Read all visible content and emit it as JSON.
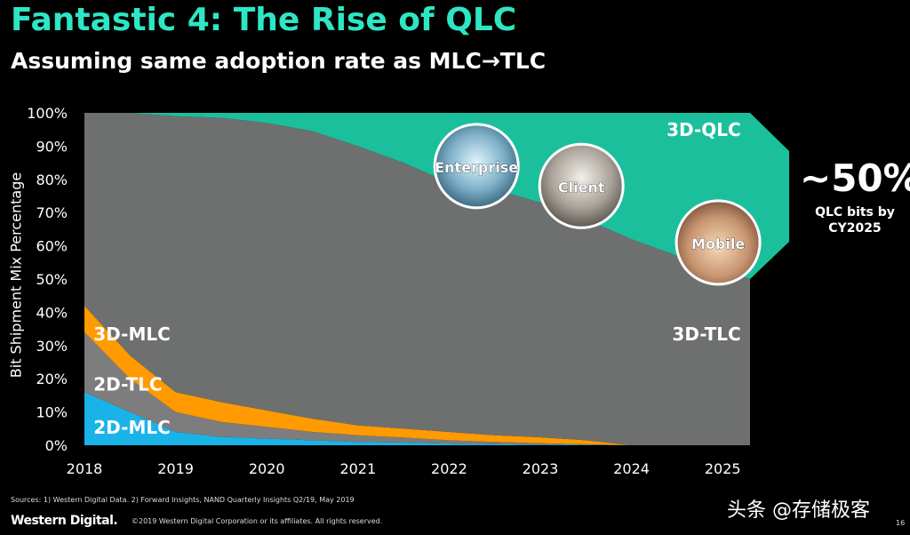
{
  "header": {
    "title": "Fantastic 4: The Rise of QLC",
    "subtitle": "Assuming same adoption rate as MLC→TLC"
  },
  "chart_data": {
    "type": "area",
    "stacked": true,
    "ylabel": "Bit Shipment Mix Percentage",
    "xlabel": "",
    "xlim": [
      2018,
      2025.3
    ],
    "ylim": [
      0,
      100
    ],
    "y_ticks": [
      "0%",
      "10%",
      "20%",
      "30%",
      "40%",
      "50%",
      "60%",
      "70%",
      "80%",
      "90%",
      "100%"
    ],
    "x_ticks": [
      "2018",
      "2019",
      "2020",
      "2021",
      "2022",
      "2023",
      "2024",
      "2025"
    ],
    "x": [
      2018,
      2018.5,
      2019,
      2019.5,
      2020,
      2020.5,
      2021,
      2021.5,
      2022,
      2022.5,
      2023,
      2023.5,
      2024,
      2024.5,
      2025,
      2025.3
    ],
    "series": [
      {
        "name": "2D-MLC",
        "color": "#1ab3e8",
        "values": [
          16,
          10,
          4,
          2.5,
          2,
          1.5,
          1,
          0.8,
          0.5,
          0.3,
          0.2,
          0.1,
          0,
          0,
          0,
          0
        ]
      },
      {
        "name": "2D-TLC",
        "color": "#7d7d7d",
        "values": [
          18,
          10,
          6,
          4.5,
          3.5,
          2.5,
          2,
          1.5,
          1,
          0.7,
          0.4,
          0.2,
          0,
          0,
          0,
          0
        ]
      },
      {
        "name": "3D-MLC",
        "color": "#ff9a00",
        "values": [
          8,
          7,
          6,
          6,
          5,
          4,
          3,
          2.7,
          2.5,
          2,
          1.8,
          1.2,
          0,
          0,
          0,
          0
        ]
      },
      {
        "name": "3D-TLC",
        "color": "#6e7070",
        "values": [
          58,
          73,
          83,
          85.5,
          86.5,
          86.5,
          84,
          80,
          75,
          74,
          70.6,
          66.5,
          62,
          57,
          53,
          50
        ]
      },
      {
        "name": "3D-QLC",
        "color": "#1cbf9c",
        "values": [
          0,
          0,
          1,
          1.5,
          3,
          5.5,
          10,
          15,
          21,
          23,
          27,
          32,
          38,
          43,
          47,
          50
        ]
      }
    ],
    "images": [
      {
        "label": "Enterprise",
        "x": 2022.3,
        "y": 84
      },
      {
        "label": "Client",
        "x": 2023.45,
        "y": 78
      },
      {
        "label": "Mobile",
        "x": 2024.95,
        "y": 61
      }
    ],
    "callout": {
      "value": "~50%",
      "text_line1": "QLC bits by",
      "text_line2": "CY2025",
      "color": "#1cbf9c"
    }
  },
  "footer": {
    "sources": "Sources: 1) Western Digital Data. 2) Forward Insights, NAND Quarterly Insights Q2/19, May 2019",
    "logo": "Western Digital.",
    "copyright": "©2019 Western Digital Corporation or its affiliates. All rights reserved.",
    "watermark": "头条 @存储极客",
    "page": "16"
  }
}
